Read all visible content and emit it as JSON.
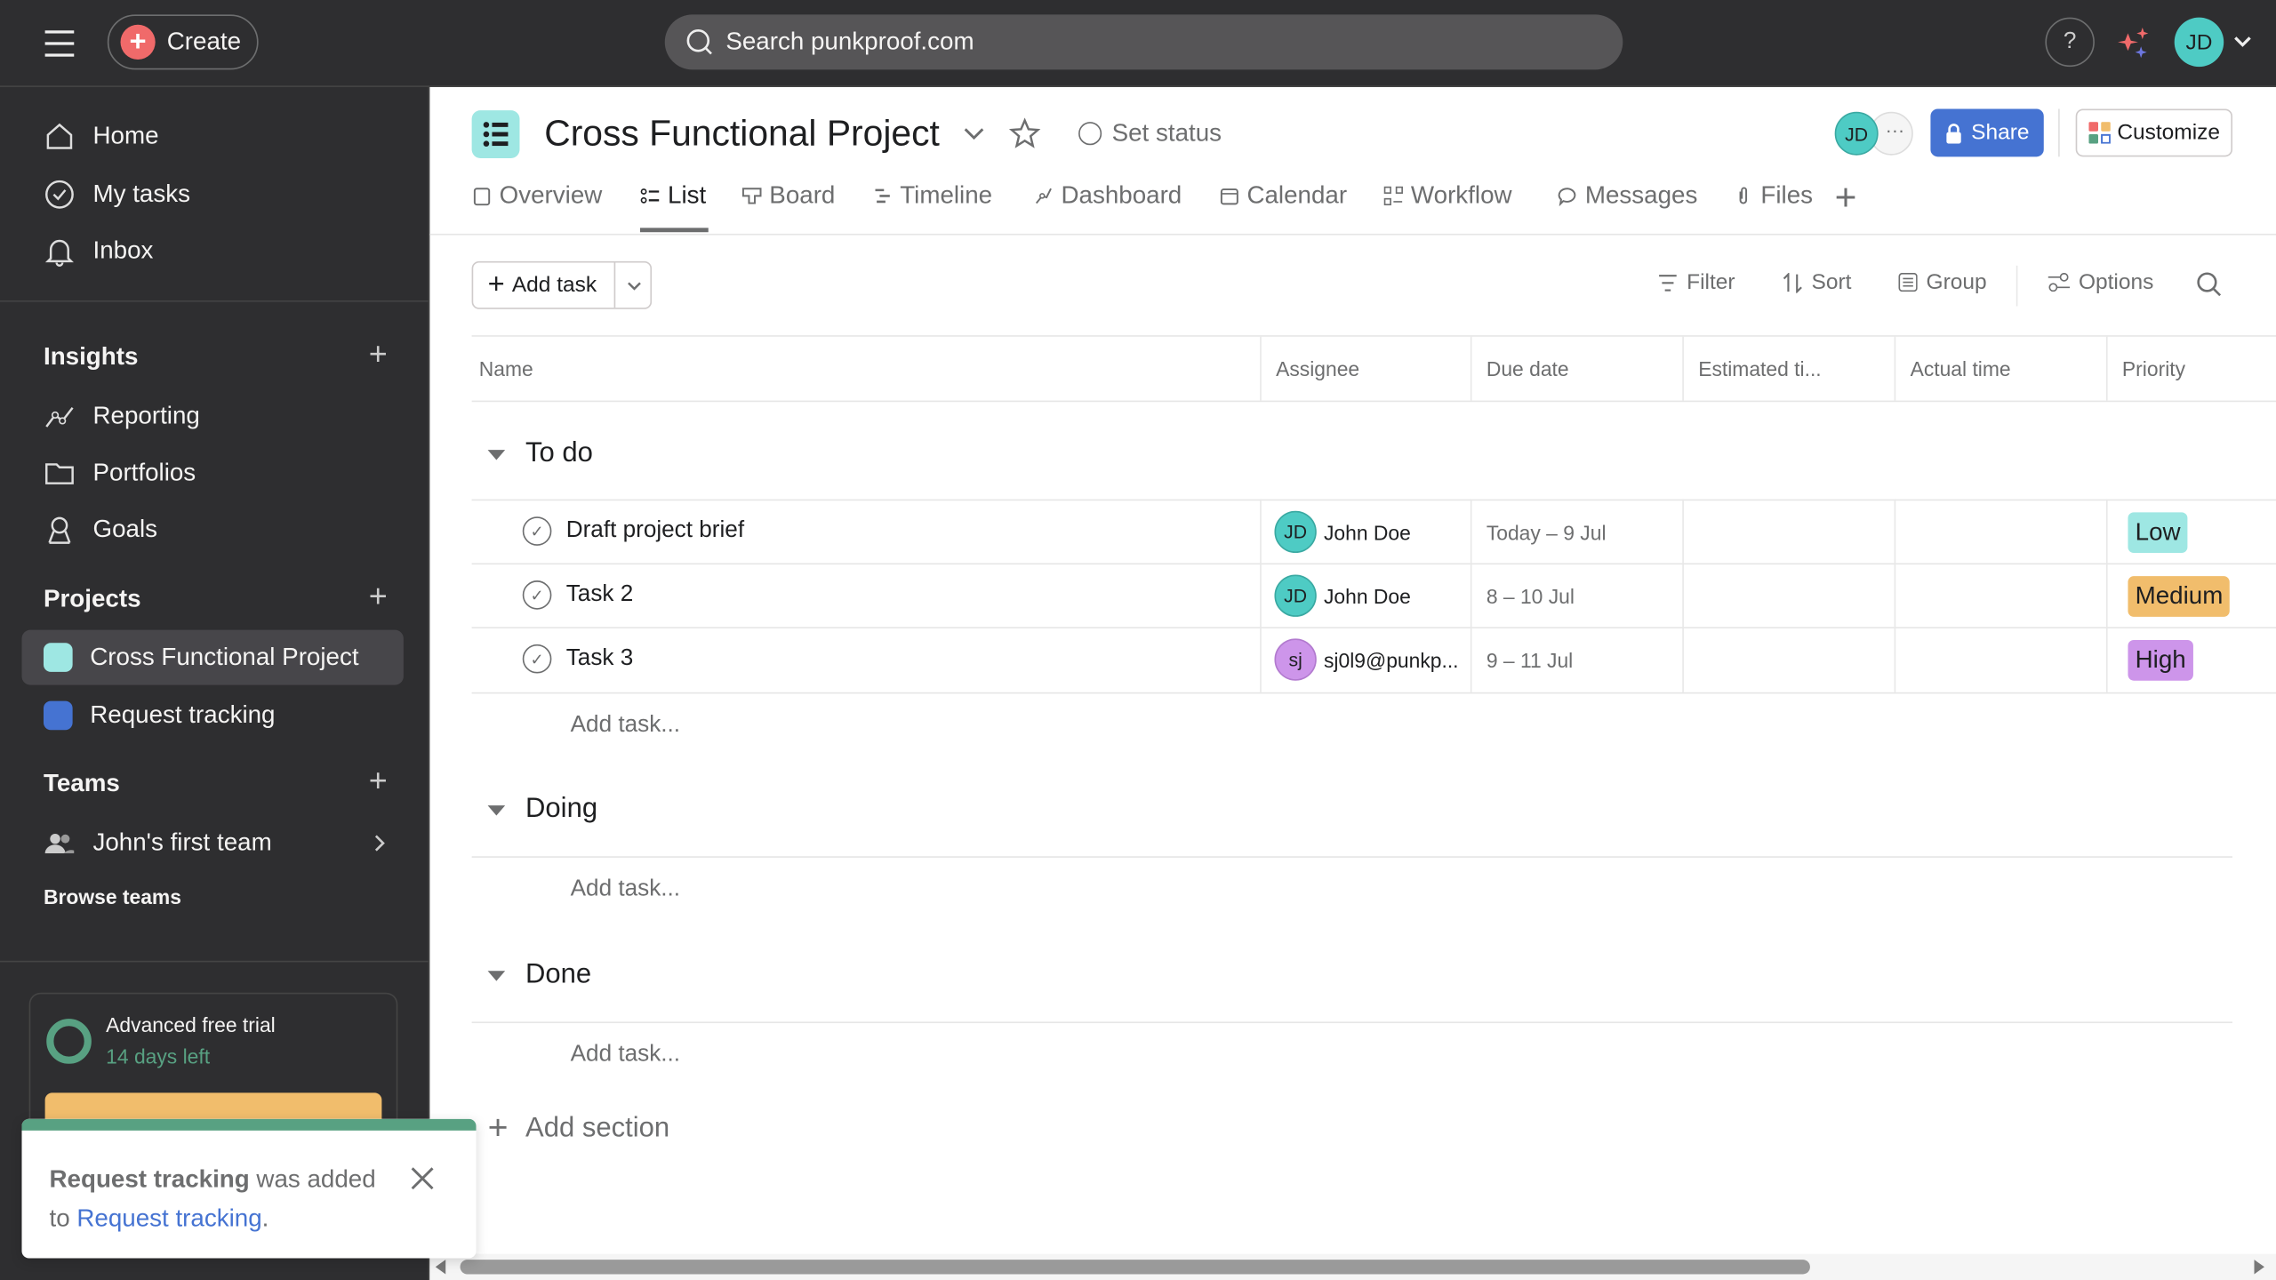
{
  "topbar": {
    "create_label": "Create",
    "search_placeholder": "Search punkproof.com",
    "help": "?",
    "avatar": "JD"
  },
  "sidebar": {
    "nav": [
      {
        "label": "Home",
        "icon": "home-icon"
      },
      {
        "label": "My tasks",
        "icon": "check-circle-icon"
      },
      {
        "label": "Inbox",
        "icon": "bell-icon"
      }
    ],
    "insights": {
      "title": "Insights",
      "items": [
        {
          "label": "Reporting",
          "icon": "reporting-icon"
        },
        {
          "label": "Portfolios",
          "icon": "folder-icon"
        },
        {
          "label": "Goals",
          "icon": "goals-icon"
        }
      ]
    },
    "projects": {
      "title": "Projects",
      "items": [
        {
          "label": "Cross Functional Project",
          "color": "#9ee7e3",
          "active": true
        },
        {
          "label": "Request tracking",
          "color": "#4573d2"
        }
      ]
    },
    "teams": {
      "title": "Teams",
      "items": [
        {
          "label": "John's first team"
        }
      ],
      "browse": "Browse teams"
    },
    "trial": {
      "title": "Advanced free trial",
      "days": "14 days left"
    }
  },
  "project": {
    "title": "Cross Functional Project",
    "set_status": "Set status",
    "member_avatar": "JD",
    "share": "Share",
    "customize": "Customize",
    "tabs": [
      "Overview",
      "List",
      "Board",
      "Timeline",
      "Dashboard",
      "Calendar",
      "Workflow",
      "Messages",
      "Files"
    ],
    "active_tab": "List"
  },
  "toolbar": {
    "add_task": "Add task",
    "filter": "Filter",
    "sort": "Sort",
    "group": "Group",
    "options": "Options"
  },
  "table": {
    "columns": [
      "Name",
      "Assignee",
      "Due date",
      "Estimated ti...",
      "Actual time",
      "Priority"
    ],
    "sections": [
      {
        "name": "To do",
        "add": "Add task...",
        "tasks": [
          {
            "name": "Draft project brief",
            "avatar": "JD",
            "assignee": "John Doe",
            "avatar_color": "#4ecbc4",
            "due": "Today – 9 Jul",
            "priority": "Low",
            "priority_color": "#9ee7e3"
          },
          {
            "name": "Task 2",
            "avatar": "JD",
            "assignee": "John Doe",
            "avatar_color": "#4ecbc4",
            "due": "8 – 10 Jul",
            "priority": "Medium",
            "priority_color": "#f1bd6c"
          },
          {
            "name": "Task 3",
            "avatar": "sj",
            "assignee": "sj0l9@punkp...",
            "avatar_color": "#cd95ea",
            "due": "9 – 11 Jul",
            "priority": "High",
            "priority_color": "#cd95ea"
          }
        ]
      },
      {
        "name": "Doing",
        "add": "Add task..."
      },
      {
        "name": "Done",
        "add": "Add task..."
      }
    ],
    "add_section": "Add section"
  },
  "toast": {
    "bold": "Request tracking",
    "text": " was added to ",
    "link": "Request tracking",
    "end": "."
  }
}
